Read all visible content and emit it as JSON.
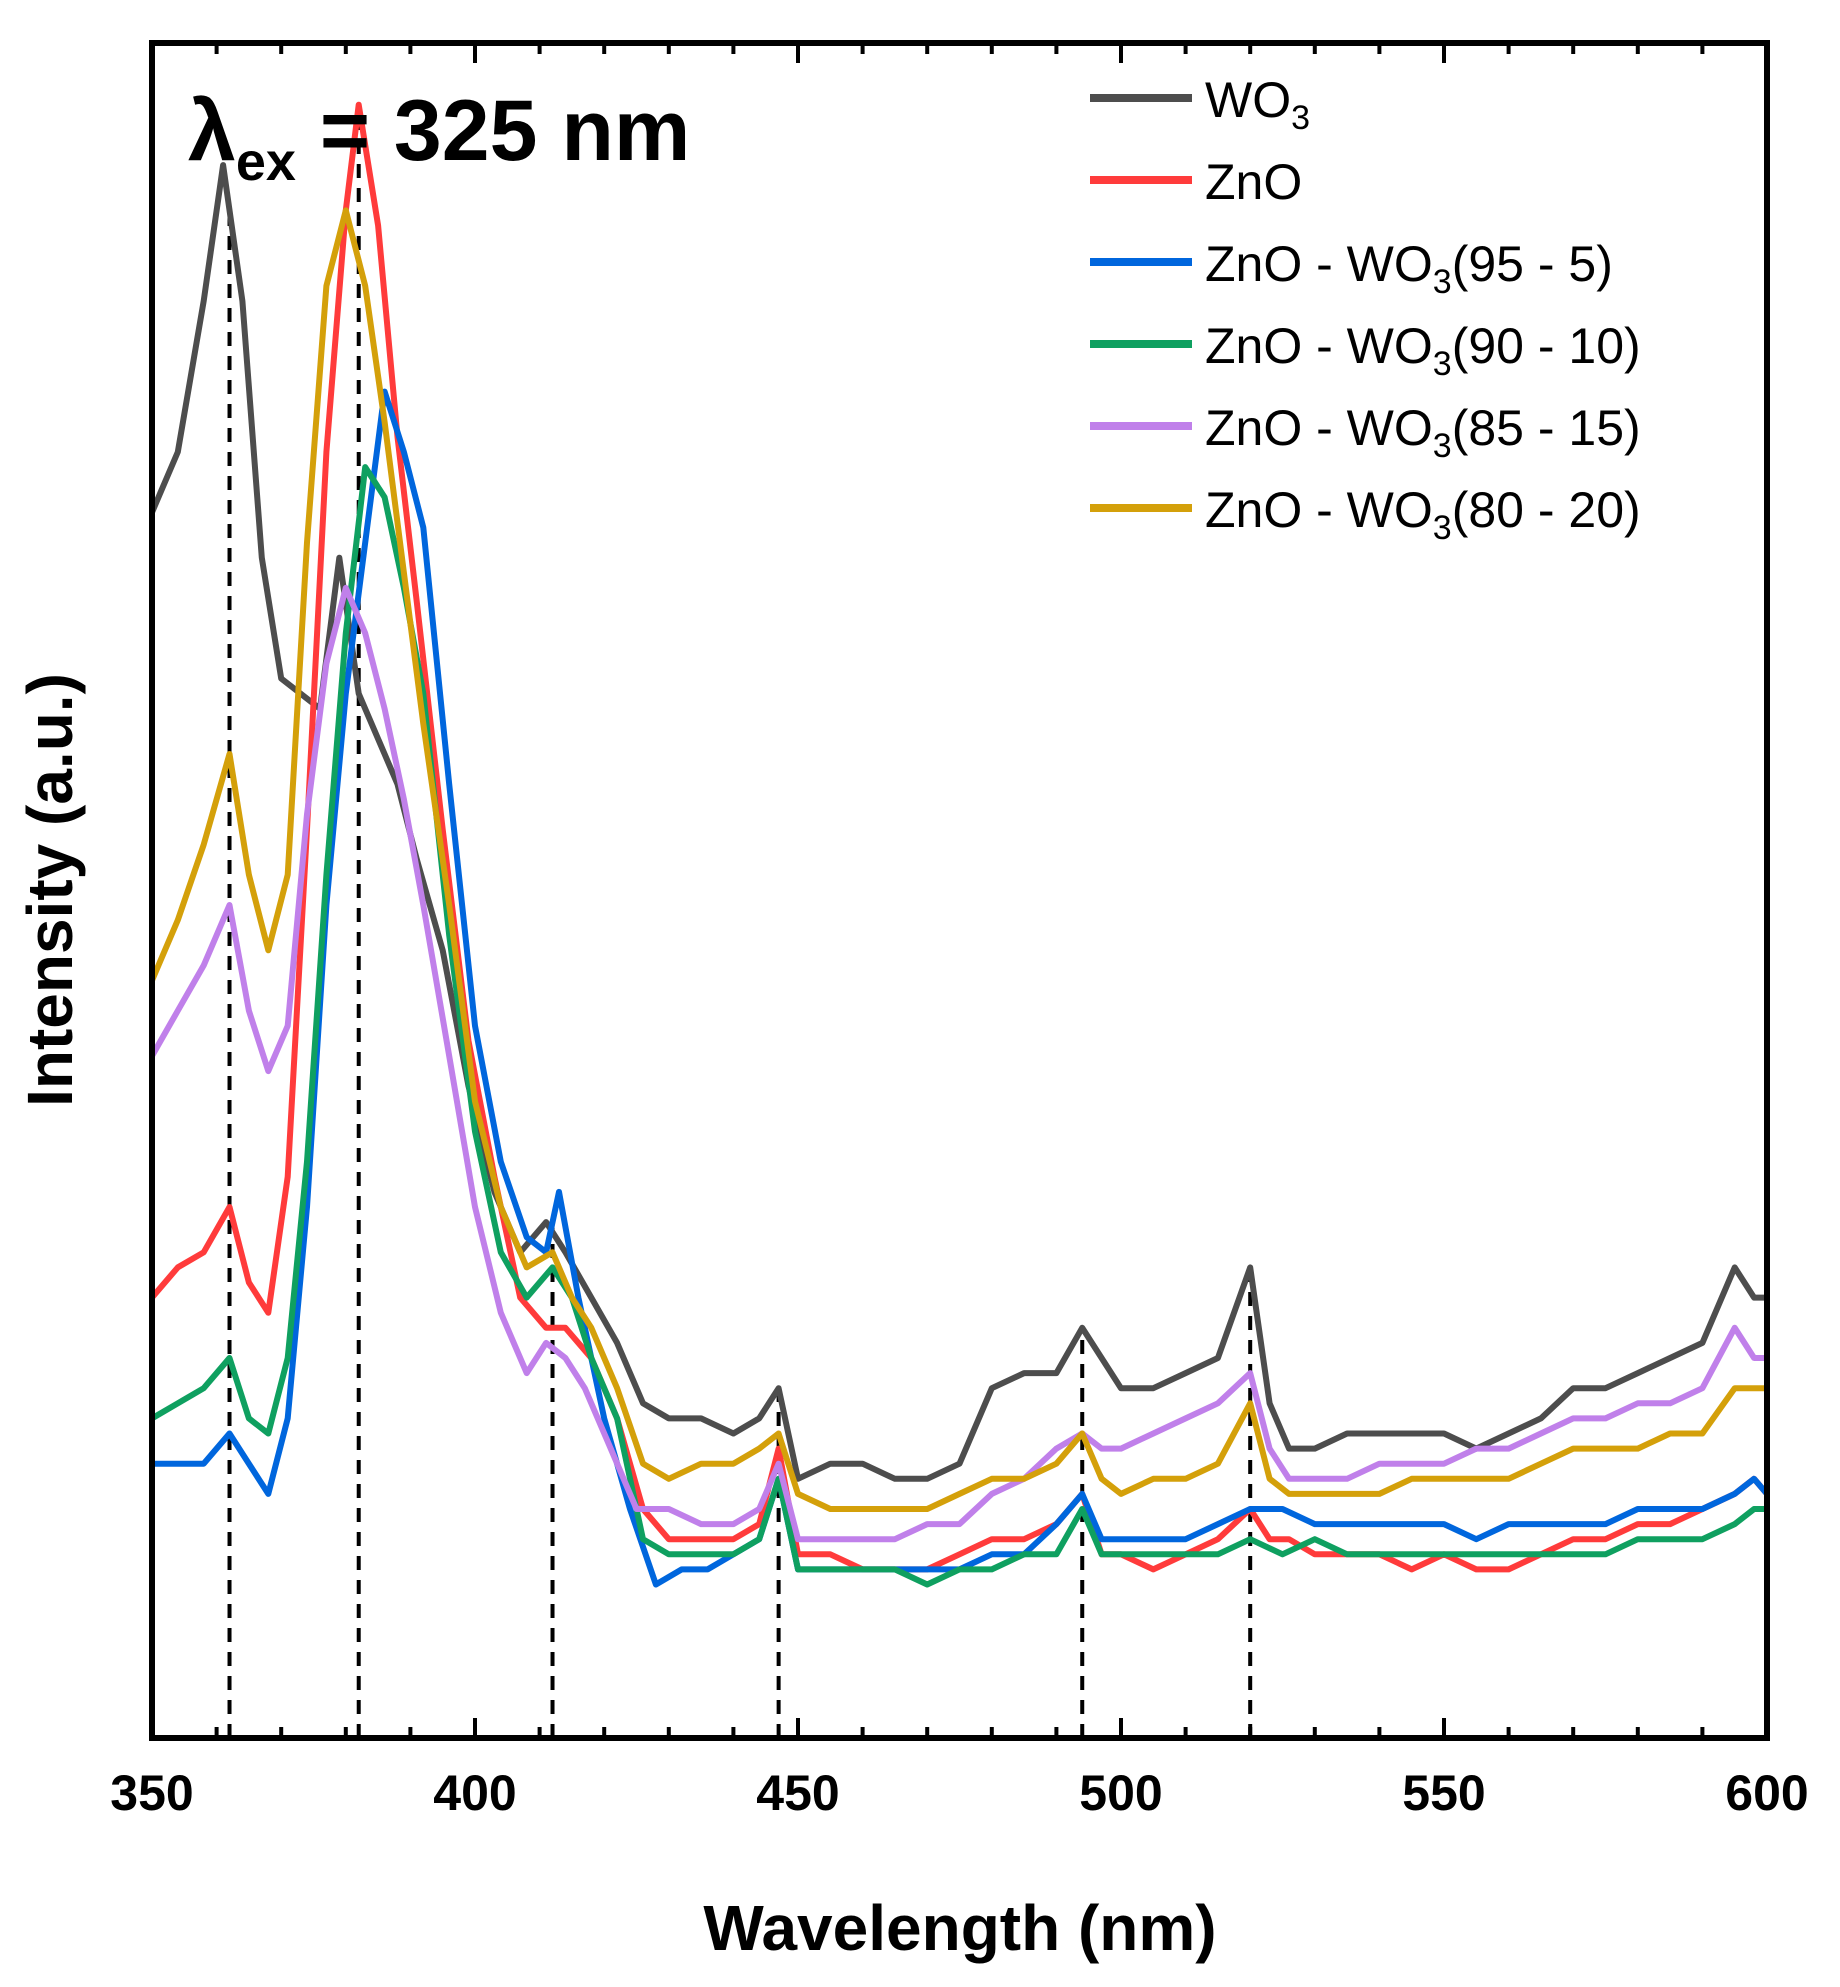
{
  "chart_data": {
    "type": "line",
    "title": "",
    "annotation": {
      "main": "λ",
      "sub": "ex",
      "rest": " = 325 nm"
    },
    "xlabel": "Wavelength (nm)",
    "ylabel": "Intensity (a.u.)",
    "xlim": [
      350,
      600
    ],
    "ylim": [
      0,
      100
    ],
    "x_ticks": [
      350,
      400,
      450,
      500,
      550,
      600
    ],
    "y_ticks": [],
    "grid": false,
    "legend_position": "top-right",
    "reference_lines": [
      362,
      382,
      412,
      447,
      494,
      520
    ],
    "series": [
      {
        "name": "WO3",
        "label_main": "WO",
        "label_sub": "3",
        "label_rest": "",
        "color": "#4d4d4d",
        "x": [
          350,
          354,
          358,
          361,
          364,
          367,
          370,
          373,
          376,
          379,
          382,
          385,
          388,
          391,
          395,
          399,
          403,
          407,
          411,
          414,
          418,
          422,
          426,
          430,
          435,
          440,
          444,
          447,
          450,
          455,
          460,
          465,
          470,
          475,
          480,
          485,
          490,
          494,
          497,
          500,
          505,
          510,
          515,
          520,
          523,
          526,
          530,
          535,
          540,
          545,
          550,
          555,
          560,
          565,
          570,
          575,
          580,
          585,
          590,
          595,
          598,
          600
        ],
        "y": [
          76,
          80,
          90,
          99,
          90,
          73,
          65,
          64,
          63,
          73,
          64,
          61,
          58,
          53,
          47,
          38,
          31,
          27,
          29,
          27,
          24,
          21,
          17,
          16,
          16,
          15,
          16,
          18,
          12,
          13,
          13,
          12,
          12,
          13,
          18,
          19,
          19,
          22,
          20,
          18,
          18,
          19,
          20,
          26,
          17,
          14,
          14,
          15,
          15,
          15,
          15,
          14,
          15,
          16,
          18,
          18,
          19,
          20,
          21,
          26,
          24,
          24
        ]
      },
      {
        "name": "ZnO",
        "label_main": "ZnO",
        "label_sub": "",
        "label_rest": "",
        "color": "#ff3b3b",
        "x": [
          350,
          354,
          358,
          362,
          365,
          368,
          371,
          374,
          377,
          380,
          382,
          385,
          388,
          391,
          395,
          399,
          403,
          407,
          411,
          414,
          418,
          422,
          426,
          430,
          435,
          440,
          444,
          447,
          450,
          455,
          460,
          465,
          470,
          475,
          480,
          485,
          490,
          494,
          497,
          500,
          505,
          510,
          515,
          520,
          523,
          526,
          530,
          535,
          540,
          545,
          550,
          555,
          560,
          565,
          570,
          575,
          580,
          585,
          590,
          595,
          598,
          600
        ],
        "y": [
          24,
          26,
          27,
          30,
          25,
          23,
          32,
          55,
          80,
          96,
          103,
          95,
          81,
          70,
          55,
          41,
          32,
          24,
          22,
          22,
          20,
          16,
          10,
          8,
          8,
          8,
          9,
          14,
          7,
          7,
          6,
          6,
          6,
          7,
          8,
          8,
          9,
          11,
          7,
          7,
          6,
          7,
          8,
          10,
          8,
          8,
          7,
          7,
          7,
          6,
          7,
          6,
          6,
          7,
          8,
          8,
          9,
          9,
          10,
          11,
          12,
          11
        ]
      },
      {
        "name": "ZnO - WO3(95 - 5)",
        "label_main": "ZnO - WO",
        "label_sub": "3",
        "label_rest": "(95 - 5)",
        "color": "#0066dd",
        "x": [
          350,
          354,
          358,
          362,
          365,
          368,
          371,
          374,
          377,
          380,
          383,
          386,
          389,
          392,
          396,
          400,
          404,
          408,
          411,
          413,
          416,
          420,
          424,
          428,
          432,
          436,
          440,
          444,
          447,
          450,
          455,
          460,
          465,
          470,
          475,
          480,
          485,
          490,
          494,
          497,
          500,
          505,
          510,
          515,
          520,
          525,
          530,
          535,
          540,
          545,
          550,
          555,
          560,
          565,
          570,
          575,
          580,
          585,
          590,
          595,
          598,
          600
        ],
        "y": [
          13,
          13,
          13,
          15,
          13,
          11,
          16,
          30,
          50,
          64,
          74,
          84,
          80,
          75,
          58,
          42,
          33,
          28,
          27,
          31,
          24,
          16,
          10,
          5,
          6,
          6,
          7,
          8,
          12,
          6,
          6,
          6,
          6,
          6,
          6,
          7,
          7,
          9,
          11,
          8,
          8,
          8,
          8,
          9,
          10,
          10,
          9,
          9,
          9,
          9,
          9,
          8,
          9,
          9,
          9,
          9,
          10,
          10,
          10,
          11,
          12,
          11
        ]
      },
      {
        "name": "ZnO - WO3(90 - 10)",
        "label_main": "ZnO - WO",
        "label_sub": "3",
        "label_rest": "(90 - 10)",
        "color": "#0fa060",
        "x": [
          350,
          354,
          358,
          362,
          365,
          368,
          371,
          374,
          377,
          380,
          383,
          386,
          389,
          392,
          396,
          400,
          404,
          408,
          412,
          415,
          418,
          422,
          426,
          430,
          435,
          440,
          444,
          447,
          450,
          455,
          460,
          465,
          470,
          475,
          480,
          485,
          490,
          494,
          497,
          500,
          505,
          510,
          515,
          520,
          525,
          530,
          535,
          540,
          545,
          550,
          555,
          560,
          565,
          570,
          575,
          580,
          585,
          590,
          595,
          598,
          600
        ],
        "y": [
          16,
          17,
          18,
          20,
          16,
          15,
          20,
          33,
          52,
          68,
          79,
          77,
          71,
          64,
          48,
          35,
          27,
          24,
          26,
          24,
          20,
          16,
          8,
          7,
          7,
          7,
          8,
          12,
          6,
          6,
          6,
          6,
          5,
          6,
          6,
          7,
          7,
          10,
          7,
          7,
          7,
          7,
          7,
          8,
          7,
          8,
          7,
          7,
          7,
          7,
          7,
          7,
          7,
          7,
          7,
          8,
          8,
          8,
          9,
          10,
          10
        ]
      },
      {
        "name": "ZnO - WO3(85 - 15)",
        "label_main": "ZnO - WO",
        "label_sub": "3",
        "label_rest": "(85 - 15)",
        "color": "#c080ea",
        "x": [
          350,
          354,
          358,
          362,
          365,
          368,
          371,
          374,
          377,
          380,
          383,
          386,
          389,
          392,
          396,
          400,
          404,
          408,
          411,
          414,
          417,
          421,
          425,
          430,
          435,
          440,
          444,
          447,
          450,
          455,
          460,
          465,
          470,
          475,
          480,
          485,
          490,
          494,
          497,
          500,
          505,
          510,
          515,
          520,
          523,
          526,
          530,
          535,
          540,
          545,
          550,
          555,
          560,
          565,
          570,
          575,
          580,
          585,
          590,
          595,
          598,
          600
        ],
        "y": [
          40,
          43,
          46,
          50,
          43,
          39,
          42,
          56,
          66,
          71,
          68,
          63,
          57,
          50,
          40,
          30,
          23,
          19,
          21,
          20,
          18,
          14,
          10,
          10,
          9,
          9,
          10,
          13,
          8,
          8,
          8,
          8,
          9,
          9,
          11,
          12,
          14,
          15,
          14,
          14,
          15,
          16,
          17,
          19,
          14,
          12,
          12,
          12,
          13,
          13,
          13,
          14,
          14,
          15,
          16,
          16,
          17,
          17,
          18,
          22,
          20,
          20
        ]
      },
      {
        "name": "ZnO - WO3(80 - 20)",
        "label_main": "ZnO - WO",
        "label_sub": "3",
        "label_rest": "(80 - 20)",
        "color": "#d4a00a",
        "x": [
          350,
          354,
          358,
          362,
          365,
          368,
          371,
          374,
          377,
          380,
          383,
          386,
          389,
          392,
          396,
          400,
          404,
          408,
          412,
          415,
          418,
          422,
          426,
          430,
          435,
          440,
          444,
          447,
          450,
          455,
          460,
          465,
          470,
          475,
          480,
          485,
          490,
          494,
          497,
          500,
          505,
          510,
          515,
          520,
          523,
          526,
          530,
          535,
          540,
          545,
          550,
          555,
          560,
          565,
          570,
          575,
          580,
          585,
          590,
          595,
          598,
          600
        ],
        "y": [
          45,
          49,
          54,
          60,
          52,
          47,
          52,
          74,
          91,
          96,
          91,
          82,
          72,
          62,
          50,
          37,
          30,
          26,
          27,
          24,
          22,
          18,
          13,
          12,
          13,
          13,
          14,
          15,
          11,
          10,
          10,
          10,
          10,
          11,
          12,
          12,
          13,
          15,
          12,
          11,
          12,
          12,
          13,
          17,
          12,
          11,
          11,
          11,
          11,
          12,
          12,
          12,
          12,
          13,
          14,
          14,
          14,
          15,
          15,
          18,
          18,
          18
        ]
      }
    ]
  }
}
